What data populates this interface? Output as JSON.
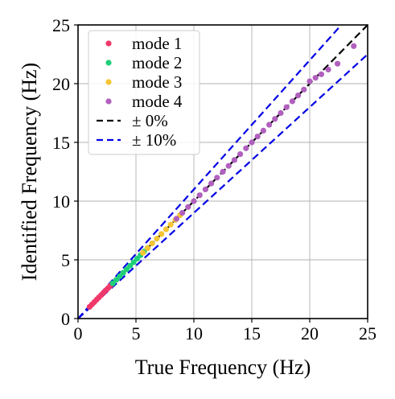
{
  "chart_data": {
    "type": "scatter",
    "title": "",
    "xlabel": "True Frequency (Hz)",
    "ylabel": "Identified Frequency (Hz)",
    "xlim": [
      0,
      25
    ],
    "ylim": [
      0,
      25
    ],
    "xticks": [
      0,
      5,
      10,
      15,
      20,
      25
    ],
    "yticks": [
      0,
      5,
      10,
      15,
      20,
      25
    ],
    "grid": true,
    "legend_position": "top-left",
    "series": [
      {
        "name": "mode 1",
        "color": "#f0386b",
        "marker": "circle",
        "points": [
          [
            1.0,
            1.0
          ],
          [
            1.2,
            1.2
          ],
          [
            1.4,
            1.4
          ],
          [
            1.6,
            1.6
          ],
          [
            1.8,
            1.8
          ],
          [
            2.0,
            2.0
          ],
          [
            2.2,
            2.2
          ],
          [
            2.4,
            2.4
          ],
          [
            2.6,
            2.6
          ],
          [
            2.8,
            2.8
          ]
        ]
      },
      {
        "name": "mode 2",
        "color": "#1fcf78",
        "marker": "circle",
        "points": [
          [
            3.0,
            3.0
          ],
          [
            3.3,
            3.3
          ],
          [
            3.6,
            3.6
          ],
          [
            3.9,
            3.9
          ],
          [
            4.2,
            4.2
          ],
          [
            4.5,
            4.5
          ],
          [
            4.8,
            4.8
          ],
          [
            5.1,
            5.1
          ],
          [
            5.4,
            5.4
          ],
          [
            5.7,
            5.7
          ],
          [
            6.0,
            6.0
          ]
        ]
      },
      {
        "name": "mode 3",
        "color": "#f6c533",
        "marker": "circle",
        "points": [
          [
            5.6,
            5.6
          ],
          [
            6.0,
            6.0
          ],
          [
            6.4,
            6.4
          ],
          [
            6.8,
            6.8
          ],
          [
            7.2,
            7.2
          ],
          [
            7.6,
            7.6
          ],
          [
            8.0,
            8.0
          ],
          [
            8.4,
            8.4
          ],
          [
            8.8,
            8.8
          ]
        ]
      },
      {
        "name": "mode 4",
        "color": "#b160be",
        "marker": "circle",
        "points": [
          [
            8.5,
            8.5
          ],
          [
            9.0,
            9.0
          ],
          [
            9.5,
            9.5
          ],
          [
            10.0,
            10.0
          ],
          [
            10.5,
            10.5
          ],
          [
            11.0,
            11.0
          ],
          [
            11.5,
            11.5
          ],
          [
            12.0,
            12.0
          ],
          [
            12.5,
            12.5
          ],
          [
            13.0,
            13.0
          ],
          [
            13.5,
            13.5
          ],
          [
            14.0,
            14.0
          ],
          [
            14.5,
            14.5
          ],
          [
            15.0,
            15.0
          ],
          [
            15.5,
            15.5
          ],
          [
            16.0,
            16.0
          ],
          [
            16.5,
            16.5
          ],
          [
            17.0,
            17.0
          ],
          [
            17.5,
            17.5
          ],
          [
            18.0,
            18.0
          ],
          [
            18.5,
            18.5
          ],
          [
            19.0,
            19.0
          ],
          [
            19.5,
            19.5
          ],
          [
            20.0,
            20.2
          ],
          [
            20.5,
            20.5
          ],
          [
            21.0,
            20.8
          ],
          [
            21.6,
            21.2
          ],
          [
            22.4,
            21.7
          ],
          [
            23.8,
            23.2
          ]
        ]
      },
      {
        "name": "± 0%",
        "color": "#000000",
        "line": "dashed",
        "points": [
          [
            0,
            0
          ],
          [
            25,
            25
          ]
        ]
      },
      {
        "name": "± 10%",
        "color": "#0000e6",
        "line": "dashed",
        "upper": [
          [
            0,
            0
          ],
          [
            22.73,
            25
          ]
        ],
        "lower": [
          [
            0,
            0
          ],
          [
            25,
            22.5
          ]
        ]
      }
    ]
  }
}
